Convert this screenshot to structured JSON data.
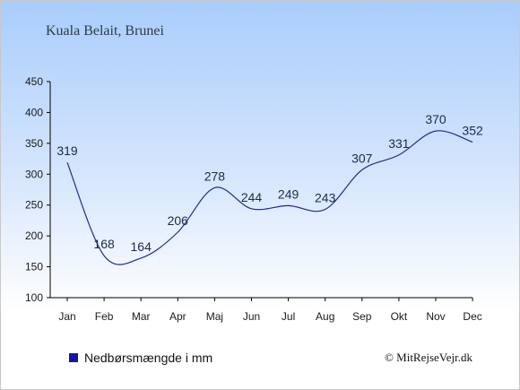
{
  "chart_data": {
    "type": "line",
    "title": "Kuala Belait, Brunei",
    "categories": [
      "Jan",
      "Feb",
      "Mar",
      "Apr",
      "Maj",
      "Jun",
      "Jul",
      "Aug",
      "Sep",
      "Okt",
      "Nov",
      "Dec"
    ],
    "series": [
      {
        "name": "Nedbørsmængde i mm",
        "values": [
          319,
          168,
          164,
          206,
          278,
          244,
          249,
          243,
          307,
          331,
          370,
          352
        ]
      }
    ],
    "y_ticks": [
      100,
      150,
      200,
      250,
      300,
      350,
      400,
      450
    ],
    "ylim": [
      100,
      450
    ],
    "grid": false,
    "legend_position": "bottom-left",
    "colors": {
      "line": "#1f2a9a",
      "legend_marker": "#10199e",
      "axis": "#000000"
    }
  },
  "credit": "© MitRejseVejr.dk"
}
